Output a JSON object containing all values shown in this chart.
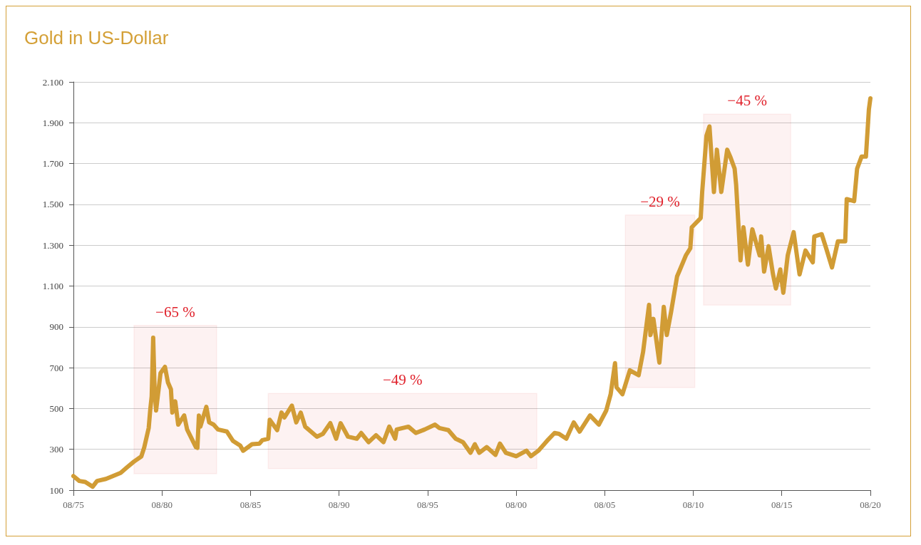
{
  "chart_data": {
    "type": "line",
    "title": "Gold in US-Dollar",
    "x": [
      "1975-08",
      "1975-12",
      "1976-04",
      "1976-09",
      "1976-12",
      "1977-06",
      "1977-11",
      "1978-04",
      "1978-08",
      "1979-01",
      "1979-06",
      "1979-08",
      "1979-11",
      "1979-12",
      "1980-01",
      "1980-02",
      "1980-03",
      "1980-04",
      "1980-07",
      "1980-10",
      "1980-12",
      "1981-02",
      "1981-03",
      "1981-05",
      "1981-07",
      "1981-11",
      "1982-01",
      "1982-07",
      "1982-08",
      "1982-09",
      "1982-10",
      "1983-02",
      "1983-04",
      "1983-07",
      "1983-10",
      "1984-04",
      "1984-08",
      "1985-01",
      "1985-03",
      "1985-09",
      "1986-02",
      "1986-04",
      "1986-08",
      "1986-09",
      "1987-02",
      "1987-05",
      "1987-07",
      "1987-12",
      "1988-03",
      "1988-06",
      "1988-09",
      "1989-05",
      "1989-09",
      "1990-02",
      "1990-06",
      "1990-09",
      "1991-02",
      "1991-08",
      "1991-11",
      "1992-04",
      "1992-09",
      "1993-02",
      "1993-06",
      "1993-10",
      "1993-11",
      "1994-07",
      "1994-12",
      "1995-06",
      "1996-01",
      "1996-04",
      "1996-10",
      "1997-03",
      "1997-08",
      "1998-01",
      "1998-04",
      "1998-07",
      "1998-12",
      "1999-06",
      "1999-09",
      "2000-01",
      "2000-08",
      "2001-03",
      "2001-06",
      "2001-11",
      "2002-05",
      "2002-10",
      "2003-01",
      "2003-06",
      "2003-11",
      "2004-03",
      "2004-10",
      "2005-04",
      "2005-09",
      "2005-12",
      "2006-03",
      "2006-04",
      "2006-08",
      "2007-01",
      "2007-07",
      "2007-10",
      "2008-02",
      "2008-03",
      "2008-05",
      "2008-09",
      "2008-12",
      "2009-02",
      "2009-05",
      "2009-09",
      "2009-11",
      "2010-03",
      "2010-06",
      "2010-07",
      "2011-01",
      "2011-02",
      "2011-05",
      "2011-07",
      "2011-10",
      "2011-12",
      "2012-03",
      "2012-07",
      "2012-09",
      "2012-12",
      "2013-01",
      "2013-02",
      "2013-04",
      "2013-06",
      "2013-09",
      "2013-12",
      "2014-05",
      "2014-06",
      "2014-08",
      "2014-11",
      "2015-02",
      "2015-04",
      "2015-07",
      "2015-09",
      "2015-12",
      "2016-04",
      "2016-08",
      "2016-12",
      "2017-05",
      "2017-06",
      "2017-11",
      "2018-02",
      "2018-06",
      "2018-10",
      "2019-03",
      "2019-04",
      "2019-09",
      "2019-11",
      "2020-02",
      "2020-05",
      "2020-07",
      "2020-08"
    ],
    "series": [
      {
        "color": "#d19c35",
        "values": [
          169,
          145,
          140,
          117,
          145,
          155,
          170,
          185,
          210,
          240,
          265,
          310,
          405,
          490,
          560,
          847,
          594,
          490,
          673,
          704,
          628,
          594,
          480,
          535,
          421,
          466,
          397,
          311,
          307,
          466,
          411,
          508,
          432,
          421,
          397,
          387,
          342,
          318,
          293,
          325,
          328,
          345,
          352,
          445,
          394,
          480,
          456,
          514,
          432,
          480,
          411,
          362,
          376,
          428,
          352,
          428,
          362,
          352,
          380,
          335,
          369,
          335,
          411,
          352,
          397,
          411,
          380,
          397,
          421,
          404,
          394,
          352,
          335,
          283,
          325,
          283,
          311,
          273,
          328,
          283,
          266,
          293,
          266,
          293,
          342,
          380,
          376,
          352,
          432,
          387,
          466,
          421,
          490,
          570,
          722,
          604,
          570,
          687,
          663,
          777,
          1008,
          860,
          939,
          725,
          998,
          860,
          974,
          1147,
          1181,
          1250,
          1285,
          1388,
          1433,
          1561,
          1837,
          1882,
          1561,
          1768,
          1561,
          1768,
          1734,
          1675,
          1596,
          1468,
          1226,
          1388,
          1205,
          1378,
          1250,
          1343,
          1171,
          1295,
          1157,
          1088,
          1181,
          1067,
          1250,
          1364,
          1157,
          1274,
          1216,
          1343,
          1354,
          1285,
          1191,
          1319,
          1319,
          1526,
          1516,
          1675,
          1734,
          1734,
          1965,
          2020
        ]
      }
    ],
    "xlim": [
      "1975-08",
      "2020-08"
    ],
    "xticks": [
      {
        "value": "1975-08",
        "label": "08/75"
      },
      {
        "value": "1980-08",
        "label": "08/80"
      },
      {
        "value": "1985-08",
        "label": "08/85"
      },
      {
        "value": "1990-08",
        "label": "08/90"
      },
      {
        "value": "1995-08",
        "label": "08/95"
      },
      {
        "value": "2000-08",
        "label": "08/00"
      },
      {
        "value": "2005-08",
        "label": "08/05"
      },
      {
        "value": "2010-08",
        "label": "08/10"
      },
      {
        "value": "2015-08",
        "label": "08/15"
      },
      {
        "value": "2020-08",
        "label": "08/20"
      }
    ],
    "ylim": [
      100,
      2100
    ],
    "yticks": [
      {
        "value": 100,
        "label": "100"
      },
      {
        "value": 300,
        "label": "300"
      },
      {
        "value": 500,
        "label": "500"
      },
      {
        "value": 700,
        "label": "700"
      },
      {
        "value": 900,
        "label": "900"
      },
      {
        "value": 1100,
        "label": "1.100"
      },
      {
        "value": 1300,
        "label": "1.300"
      },
      {
        "value": 1500,
        "label": "1.500"
      },
      {
        "value": 1700,
        "label": "1.700"
      },
      {
        "value": 1900,
        "label": "1.900"
      },
      {
        "value": 2100,
        "label": "2.100"
      }
    ],
    "bands": [
      {
        "axis": "x",
        "from": "1979-01",
        "to": "1983-09",
        "label": "−65 %",
        "color": "#e0202a"
      },
      {
        "axis": "x",
        "from": "1986-08",
        "to": "2001-10",
        "label": "−49 %",
        "color": "#e0202a"
      },
      {
        "axis": "x",
        "from": "2006-10",
        "to": "2010-09",
        "label": "−29 %",
        "color": "#e0202a"
      },
      {
        "axis": "x",
        "from": "2011-03",
        "to": "2016-02",
        "label": "−45 %",
        "color": "#e0202a"
      }
    ],
    "grid": "y"
  }
}
